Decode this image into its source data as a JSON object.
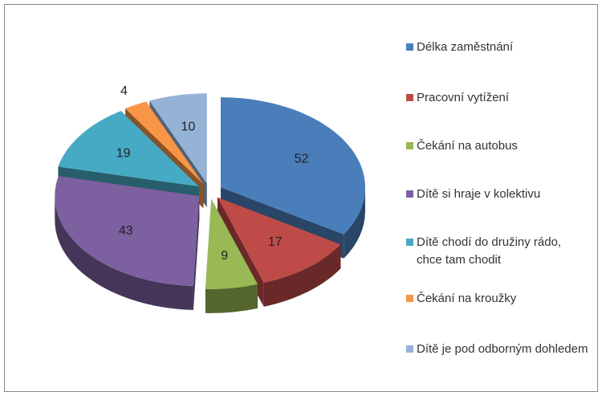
{
  "chart_data": {
    "type": "pie",
    "categories": [
      "Délka zaměstnání",
      "Pracovní vytížení",
      "Čekání na autobus",
      "Dítě si hraje v kolektivu",
      "Dítě chodí do družiny rádo, chce tam chodit",
      "Čekání na kroužky",
      "Dítě je pod odborným dohledem"
    ],
    "values": [
      52,
      17,
      9,
      43,
      19,
      4,
      10
    ],
    "colors": [
      "#4a7ebb",
      "#be4b48",
      "#98b954",
      "#7d60a0",
      "#46aac5",
      "#f79646",
      "#95b3d7"
    ],
    "legend": "right"
  }
}
